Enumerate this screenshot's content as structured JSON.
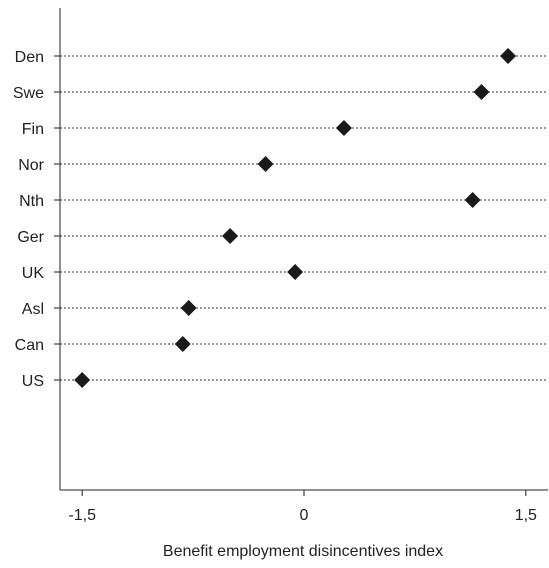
{
  "chart_data": {
    "type": "scatter",
    "categories": [
      "Den",
      "Swe",
      "Fin",
      "Nor",
      "Nth",
      "Ger",
      "UK",
      "Asl",
      "Can",
      "US"
    ],
    "groups": [
      [
        "Den",
        "Swe",
        "Fin",
        "Nor"
      ],
      [
        "Nth",
        "Ger"
      ],
      [
        "UK",
        "Asl",
        "Can",
        "US"
      ]
    ],
    "values": [
      1.38,
      1.2,
      0.27,
      -0.26,
      1.14,
      -0.5,
      -0.06,
      -0.78,
      -0.82,
      -1.5
    ],
    "xlabel": "Benefit employment disincentives index",
    "ylabel": "",
    "xlim": [
      -1.65,
      1.65
    ],
    "xticks": [
      -1.5,
      0,
      1.5
    ],
    "xtick_labels": [
      "-1,5",
      "0",
      "1,5"
    ],
    "grid": "dotted horizontal guide lines per category",
    "marker": "diamond",
    "marker_color": "#1a1a1a",
    "legend": "none"
  }
}
